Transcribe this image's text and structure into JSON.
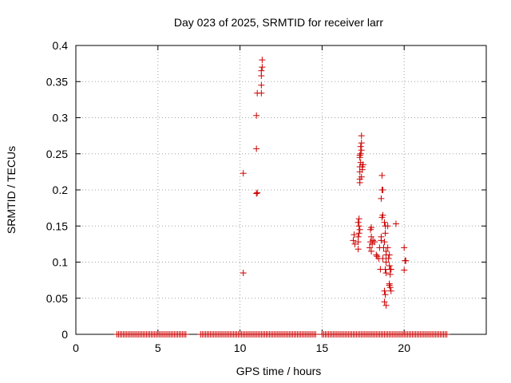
{
  "chart_data": {
    "type": "scatter",
    "title": "Day 023 of 2025, SRMTID for receiver larr",
    "xlabel": "GPS time / hours",
    "ylabel": "SRMTID / TECUs",
    "xlim": [
      0,
      25
    ],
    "ylim": [
      0,
      0.4
    ],
    "xticks": [
      0,
      5,
      10,
      15,
      20
    ],
    "xtick_labels": [
      "0",
      "5",
      "10",
      "15",
      "20"
    ],
    "yticks": [
      0,
      0.05,
      0.1,
      0.15,
      0.2,
      0.25,
      0.3,
      0.35,
      0.4
    ],
    "ytick_labels": [
      "0",
      "0.05",
      "0.1",
      "0.15",
      "0.2",
      "0.25",
      "0.3",
      "0.35",
      "0.4"
    ],
    "grid": true,
    "marker": "+",
    "series": [
      {
        "name": "SRMTID",
        "color": "#cc0000",
        "zero_runs": [
          [
            2.5,
            6.7
          ],
          [
            7.6,
            14.6
          ],
          [
            15.0,
            22.6
          ]
        ],
        "zero_step": 0.1,
        "points": [
          [
            10.2,
            0.085
          ],
          [
            10.2,
            0.223
          ],
          [
            11.0,
            0.195
          ],
          [
            11.05,
            0.196
          ],
          [
            11.0,
            0.257
          ],
          [
            11.0,
            0.303
          ],
          [
            11.05,
            0.334
          ],
          [
            11.3,
            0.334
          ],
          [
            11.3,
            0.345
          ],
          [
            11.3,
            0.358
          ],
          [
            11.3,
            0.365
          ],
          [
            11.35,
            0.37
          ],
          [
            11.35,
            0.38
          ],
          [
            16.9,
            0.13
          ],
          [
            16.95,
            0.138
          ],
          [
            17.0,
            0.125
          ],
          [
            17.2,
            0.118
          ],
          [
            17.2,
            0.128
          ],
          [
            17.25,
            0.14
          ],
          [
            17.25,
            0.15
          ],
          [
            17.2,
            0.155
          ],
          [
            17.25,
            0.16
          ],
          [
            17.3,
            0.145
          ],
          [
            17.2,
            0.135
          ],
          [
            17.3,
            0.21
          ],
          [
            17.3,
            0.215
          ],
          [
            17.3,
            0.225
          ],
          [
            17.3,
            0.232
          ],
          [
            17.35,
            0.238
          ],
          [
            17.3,
            0.245
          ],
          [
            17.35,
            0.25
          ],
          [
            17.4,
            0.255
          ],
          [
            17.35,
            0.26
          ],
          [
            17.4,
            0.265
          ],
          [
            17.4,
            0.275
          ],
          [
            17.45,
            0.232
          ],
          [
            17.5,
            0.235
          ],
          [
            17.45,
            0.228
          ],
          [
            17.4,
            0.218
          ],
          [
            17.3,
            0.248
          ],
          [
            17.9,
            0.12
          ],
          [
            17.95,
            0.128
          ],
          [
            18.0,
            0.135
          ],
          [
            17.95,
            0.145
          ],
          [
            18.0,
            0.148
          ],
          [
            18.05,
            0.125
          ],
          [
            18.1,
            0.13
          ],
          [
            18.0,
            0.115
          ],
          [
            18.2,
            0.128
          ],
          [
            18.3,
            0.11
          ],
          [
            18.35,
            0.108
          ],
          [
            18.45,
            0.105
          ],
          [
            18.5,
            0.12
          ],
          [
            18.55,
            0.09
          ],
          [
            18.6,
            0.13
          ],
          [
            18.6,
            0.135
          ],
          [
            18.65,
            0.162
          ],
          [
            18.7,
            0.165
          ],
          [
            18.6,
            0.188
          ],
          [
            18.65,
            0.2
          ],
          [
            18.7,
            0.2
          ],
          [
            18.65,
            0.22
          ],
          [
            18.7,
            0.105
          ],
          [
            18.75,
            0.12
          ],
          [
            18.8,
            0.128
          ],
          [
            18.85,
            0.15
          ],
          [
            18.8,
            0.155
          ],
          [
            18.85,
            0.14
          ],
          [
            18.9,
            0.11
          ],
          [
            18.9,
            0.115
          ],
          [
            18.9,
            0.1
          ],
          [
            18.85,
            0.09
          ],
          [
            18.9,
            0.085
          ],
          [
            18.8,
            0.06
          ],
          [
            18.85,
            0.055
          ],
          [
            18.8,
            0.045
          ],
          [
            18.9,
            0.04
          ],
          [
            19.0,
            0.15
          ],
          [
            19.0,
            0.12
          ],
          [
            19.05,
            0.105
          ],
          [
            19.1,
            0.11
          ],
          [
            19.1,
            0.095
          ],
          [
            19.15,
            0.09
          ],
          [
            19.15,
            0.083
          ],
          [
            19.1,
            0.07
          ],
          [
            19.1,
            0.068
          ],
          [
            19.15,
            0.065
          ],
          [
            19.2,
            0.06
          ],
          [
            19.2,
            0.09
          ],
          [
            19.5,
            0.153
          ],
          [
            20.0,
            0.12
          ],
          [
            20.05,
            0.102
          ],
          [
            20.1,
            0.102
          ],
          [
            20.0,
            0.089
          ]
        ]
      }
    ]
  }
}
